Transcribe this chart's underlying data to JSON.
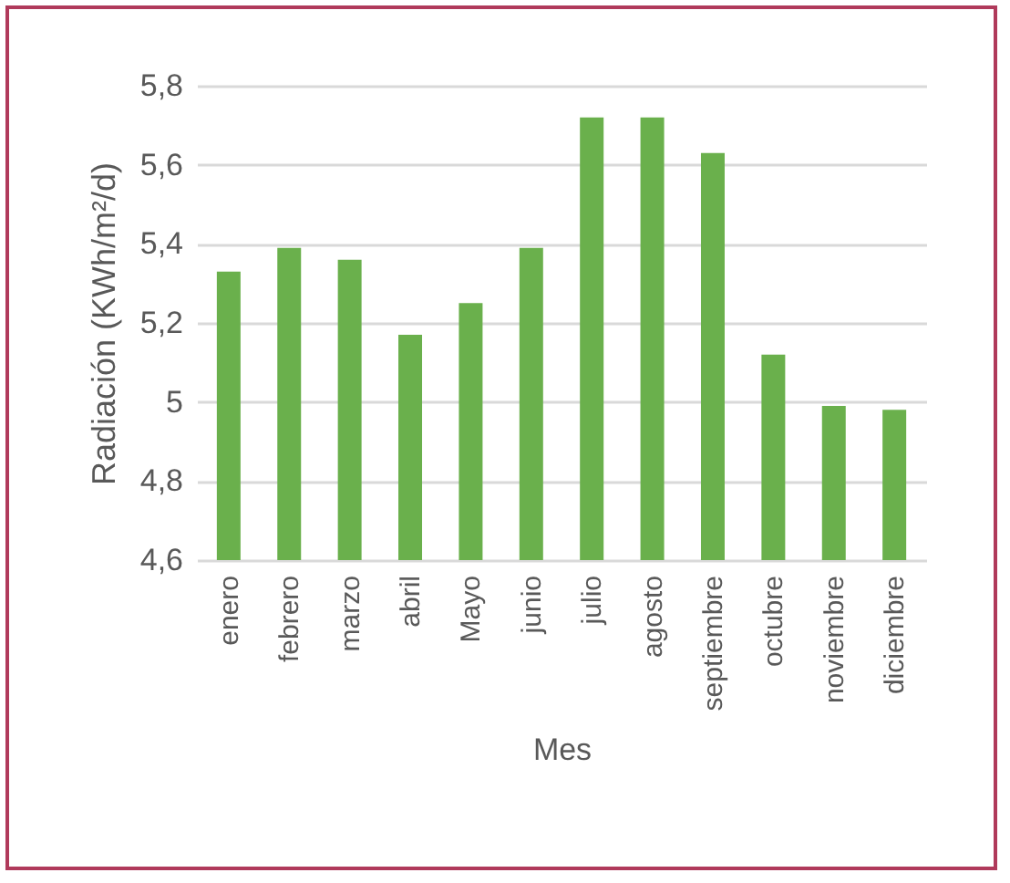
{
  "chart_data": {
    "type": "bar",
    "xlabel": "Mes",
    "ylabel": "Radiación (KWh/m²/d)",
    "categories": [
      "enero",
      "febrero",
      "marzo",
      "abril",
      "Mayo",
      "junio",
      "julio",
      "agosto",
      "septiembre",
      "octubre",
      "noviembre",
      "diciembre"
    ],
    "values": [
      5.33,
      5.39,
      5.36,
      5.17,
      5.25,
      5.39,
      5.72,
      5.72,
      5.63,
      5.12,
      4.99,
      4.98
    ],
    "color": "#6ab04c",
    "ylim": [
      4.6,
      5.8
    ],
    "yticks": [
      {
        "value": 4.6,
        "label": "4,6"
      },
      {
        "value": 4.8,
        "label": "4,8"
      },
      5,
      {
        "value": 5.2,
        "label": "5,2"
      },
      {
        "value": 5.4,
        "label": "5,4"
      },
      {
        "value": 5.6,
        "label": "5,6"
      },
      {
        "value": 5.8,
        "label": "5,8"
      }
    ],
    "grid": "y"
  }
}
